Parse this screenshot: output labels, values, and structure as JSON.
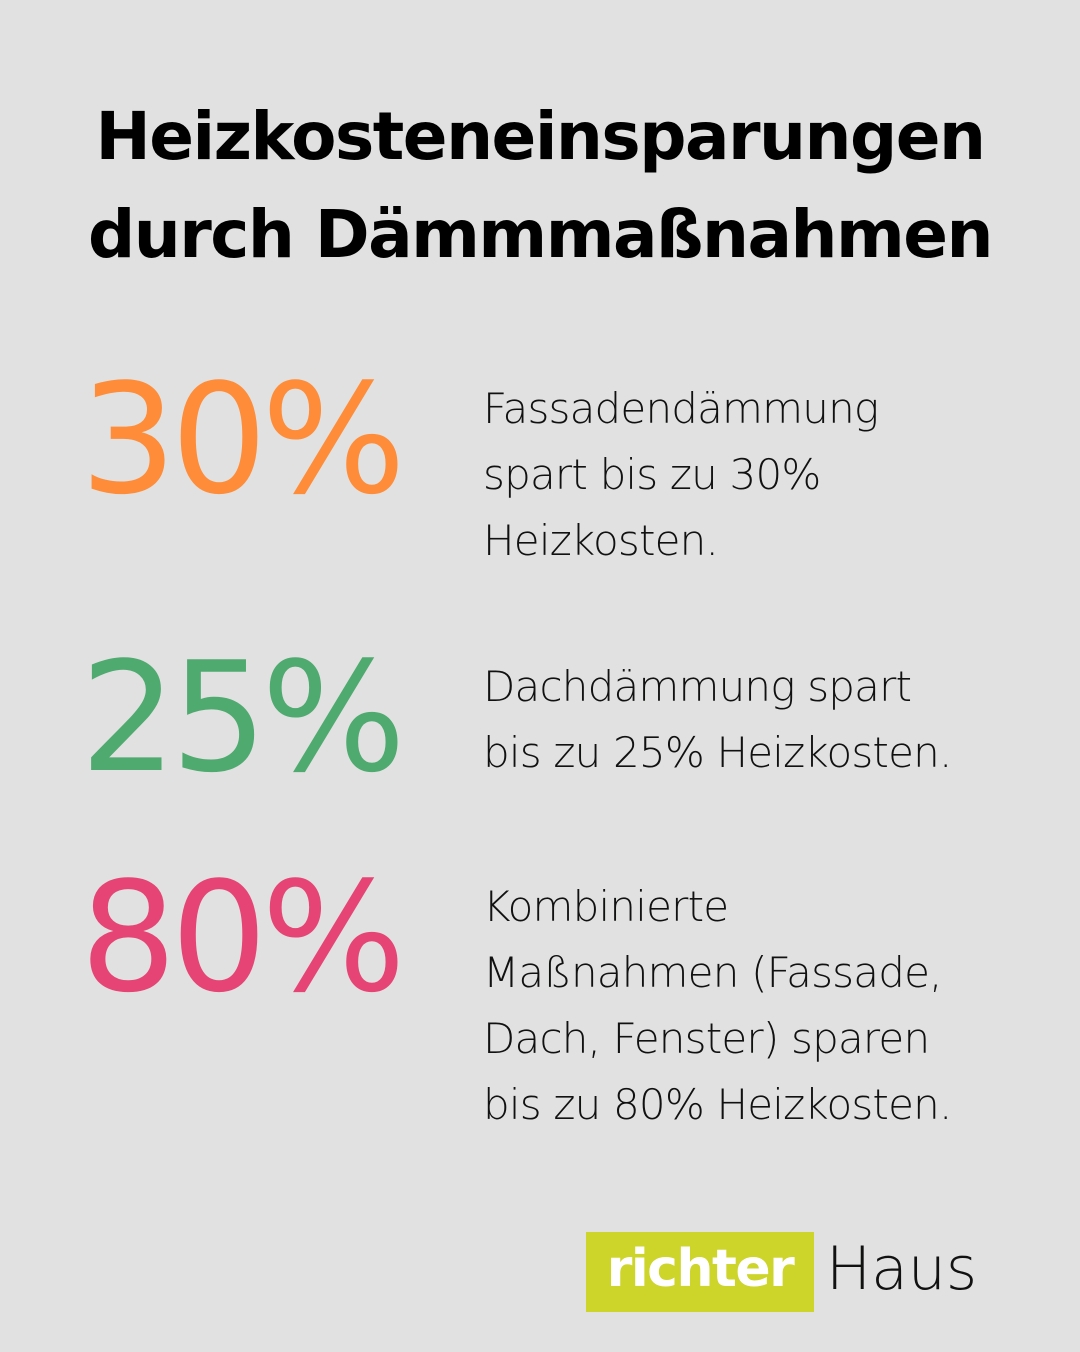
{
  "title": {
    "line1": "Heizkosteneinsparungen",
    "line2": "durch Dämmmaßnahmen"
  },
  "stats": [
    {
      "value": "30%",
      "color": "#FF8C38",
      "description_lines": [
        "Fassadendämmung",
        "spart bis zu 30%",
        "Heizkosten."
      ]
    },
    {
      "value": "25%",
      "color": "#4EAA6E",
      "description_lines": [
        "Dachdämmung spart",
        "bis zu 25% Heizkosten."
      ]
    },
    {
      "value": "80%",
      "color": "#E54474",
      "description_lines": [
        "Kombinierte",
        "Maßnahmen (Fassade,",
        "Dach, Fenster) sparen",
        "bis zu 80% Heizkosten."
      ]
    }
  ],
  "logo": {
    "part1": "richter",
    "part2": "Haus",
    "accent_color": "#CDD42A"
  },
  "colors": {
    "background": "#E0E1E0",
    "text": "#000000"
  }
}
